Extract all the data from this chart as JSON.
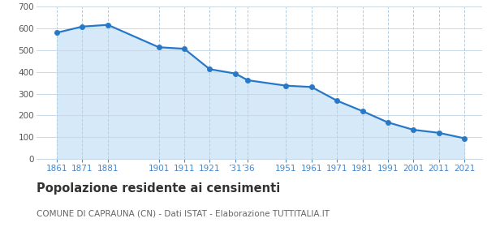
{
  "years": [
    1861,
    1871,
    1881,
    1901,
    1911,
    1921,
    1931,
    1936,
    1951,
    1961,
    1971,
    1981,
    1991,
    2001,
    2011,
    2021
  ],
  "population": [
    581,
    609,
    617,
    514,
    507,
    413,
    393,
    362,
    337,
    331,
    268,
    220,
    168,
    134,
    120,
    95
  ],
  "y_ticks": [
    0,
    100,
    200,
    300,
    400,
    500,
    600,
    700
  ],
  "ylim": [
    0,
    700
  ],
  "xlim_left": 1853,
  "xlim_right": 2028,
  "line_color": "#2878c8",
  "fill_color": "#d6e9f8",
  "marker_color": "#2878c8",
  "grid_color_x": "#b8cfe0",
  "grid_color_y": "#c8d8e8",
  "background_color": "#ffffff",
  "title": "Popolazione residente ai censimenti",
  "subtitle": "COMUNE DI CAPRAUNA (CN) - Dati ISTAT - Elaborazione TUTTITALIA.IT",
  "title_fontsize": 10.5,
  "subtitle_fontsize": 7.5,
  "tick_color_x": "#4488cc",
  "tick_color_y": "#555555",
  "tick_fontsize": 7.5,
  "x_tick_positions": [
    1861,
    1871,
    1881,
    1901,
    1911,
    1921,
    1931,
    1936,
    1951,
    1961,
    1971,
    1981,
    1991,
    2001,
    2011,
    2021
  ],
  "x_tick_labels": [
    "1861",
    "1871",
    "1881",
    "1901",
    "1911",
    "1921",
    "’31",
    "’36",
    "1951",
    "1961",
    "1971",
    "1981",
    "1991",
    "2001",
    "2011",
    "2021"
  ]
}
